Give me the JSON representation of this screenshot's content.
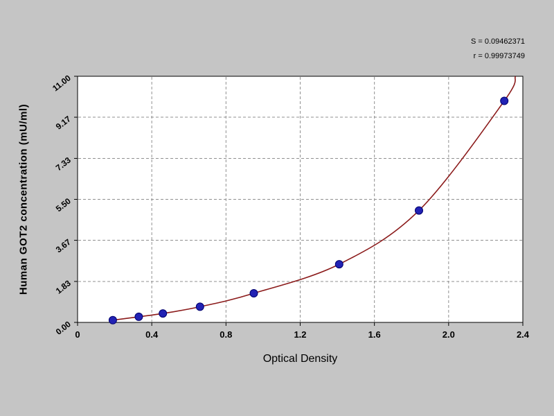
{
  "chart_data": {
    "type": "scatter",
    "title": "",
    "xlabel": "Optical Density",
    "ylabel": "Human GOT2 concentration (mU/ml)",
    "xlim": [
      0,
      2.4
    ],
    "ylim": [
      0,
      11
    ],
    "x_ticks": [
      0,
      0.4,
      0.8,
      1.2,
      1.6,
      2.0,
      2.4
    ],
    "x_tick_labels": [
      "0",
      "0.4",
      "0.8",
      "1.2",
      "1.6",
      "2.0",
      "2.4"
    ],
    "y_ticks": [
      0,
      1.83,
      3.67,
      5.5,
      7.33,
      9.17,
      11
    ],
    "y_tick_labels": [
      "0.00",
      "1.83",
      "3.67",
      "5.50",
      "7.33",
      "9.17",
      "11.00"
    ],
    "grid": true,
    "grid_style": "dashed",
    "legend": "none",
    "series": [
      {
        "name": "standard-points",
        "type": "scatter",
        "color": "#2222b4",
        "points": [
          [
            0.19,
            0.1
          ],
          [
            0.33,
            0.25
          ],
          [
            0.46,
            0.4
          ],
          [
            0.66,
            0.7
          ],
          [
            0.95,
            1.3
          ],
          [
            1.41,
            2.6
          ],
          [
            1.84,
            5.0
          ],
          [
            2.3,
            9.9
          ]
        ]
      },
      {
        "name": "fitted-curve",
        "type": "line",
        "color": "#8b1a1a",
        "extends_to": [
          2.36,
          11
        ]
      }
    ],
    "annotations": [
      "S = 0.09462371",
      "r = 0.99973749"
    ]
  },
  "stats": {
    "s_line": "S = 0.09462371",
    "r_line": "r = 0.99973749"
  },
  "colors": {
    "figure_background": "#c5c5c5",
    "plot_background": "#ffffff",
    "grid": "#8f8f8f",
    "axis": "#000000",
    "curve": "#8b1a1a",
    "point_fill": "#2222b4",
    "point_stroke": "#00006e"
  }
}
